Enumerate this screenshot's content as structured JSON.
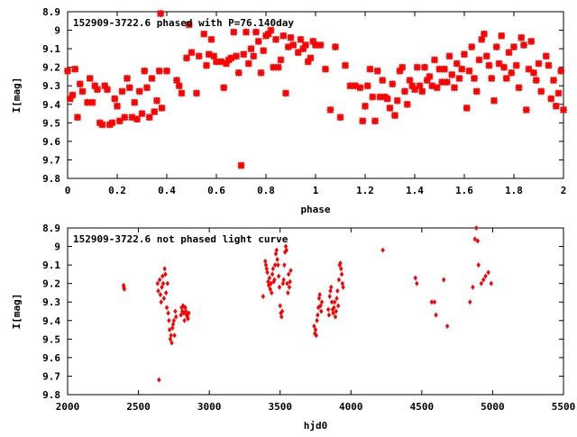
{
  "chart_data": [
    {
      "type": "scatter",
      "title": "152909-3722.6 phased with P=76.140day",
      "xlabel": "phase",
      "ylabel": "I[mag]",
      "xlim": [
        0,
        2
      ],
      "ylim": [
        9.8,
        8.9
      ],
      "y_inverted": true,
      "grid": false,
      "legend": "none",
      "marker": "filled-diamond-cross",
      "color": "#ff0000",
      "xticks": [
        "0",
        "0.2",
        "0.4",
        "0.6",
        "0.8",
        "1",
        "1.2",
        "1.4",
        "1.6",
        "1.8",
        "2"
      ],
      "yticks": [
        "8.9",
        "9",
        "9.1",
        "9.2",
        "9.3",
        "9.4",
        "9.5",
        "9.6",
        "9.7",
        "9.8"
      ],
      "points": [
        [
          0.0,
          9.22
        ],
        [
          0.01,
          9.37
        ],
        [
          0.02,
          9.35
        ],
        [
          0.03,
          9.21
        ],
        [
          0.04,
          9.47
        ],
        [
          0.05,
          9.29
        ],
        [
          0.06,
          9.33
        ],
        [
          0.08,
          9.39
        ],
        [
          0.09,
          9.26
        ],
        [
          0.1,
          9.39
        ],
        [
          0.11,
          9.3
        ],
        [
          0.12,
          9.32
        ],
        [
          0.13,
          9.5
        ],
        [
          0.14,
          9.51
        ],
        [
          0.15,
          9.3
        ],
        [
          0.16,
          9.32
        ],
        [
          0.17,
          9.51
        ],
        [
          0.18,
          9.5
        ],
        [
          0.19,
          9.37
        ],
        [
          0.2,
          9.41
        ],
        [
          0.21,
          9.49
        ],
        [
          0.22,
          9.33
        ],
        [
          0.23,
          9.47
        ],
        [
          0.24,
          9.26
        ],
        [
          0.25,
          9.31
        ],
        [
          0.26,
          9.47
        ],
        [
          0.27,
          9.39
        ],
        [
          0.28,
          9.48
        ],
        [
          0.29,
          9.33
        ],
        [
          0.3,
          9.45
        ],
        [
          0.31,
          9.22
        ],
        [
          0.32,
          9.31
        ],
        [
          0.33,
          9.47
        ],
        [
          0.34,
          9.26
        ],
        [
          0.35,
          9.44
        ],
        [
          0.36,
          9.38
        ],
        [
          0.37,
          9.22
        ],
        [
          0.375,
          8.91
        ],
        [
          0.38,
          9.42
        ],
        [
          0.4,
          9.22
        ],
        [
          0.44,
          9.27
        ],
        [
          0.45,
          9.3
        ],
        [
          0.46,
          9.34
        ],
        [
          0.48,
          9.15
        ],
        [
          0.49,
          8.97
        ],
        [
          0.5,
          9.12
        ],
        [
          0.52,
          9.34
        ],
        [
          0.53,
          9.14
        ],
        [
          0.55,
          9.02
        ],
        [
          0.56,
          9.19
        ],
        [
          0.57,
          9.13
        ],
        [
          0.58,
          9.05
        ],
        [
          0.59,
          9.14
        ],
        [
          0.6,
          9.17
        ],
        [
          0.62,
          9.17
        ],
        [
          0.63,
          9.31
        ],
        [
          0.64,
          9.18
        ],
        [
          0.65,
          9.16
        ],
        [
          0.66,
          9.15
        ],
        [
          0.67,
          9.01
        ],
        [
          0.68,
          9.14
        ],
        [
          0.69,
          9.23
        ],
        [
          0.7,
          9.73
        ],
        [
          0.71,
          9.13
        ],
        [
          0.72,
          9.01
        ],
        [
          0.73,
          9.18
        ],
        [
          0.74,
          9.1
        ],
        [
          0.75,
          9.14
        ],
        [
          0.76,
          9.01
        ],
        [
          0.77,
          9.06
        ],
        [
          0.78,
          9.23
        ],
        [
          0.79,
          9.11
        ],
        [
          0.8,
          9.03
        ],
        [
          0.81,
          9.02
        ],
        [
          0.82,
          9.0
        ],
        [
          0.83,
          9.2
        ],
        [
          0.84,
          9.05
        ],
        [
          0.85,
          9.2
        ],
        [
          0.86,
          9.16
        ],
        [
          0.87,
          9.03
        ],
        [
          0.88,
          9.34
        ],
        [
          0.89,
          9.09
        ],
        [
          0.9,
          9.04
        ],
        [
          0.91,
          9.08
        ],
        [
          0.93,
          9.12
        ],
        [
          0.94,
          9.05
        ],
        [
          0.95,
          9.1
        ],
        [
          0.96,
          9.08
        ],
        [
          0.97,
          9.17
        ],
        [
          0.98,
          9.15
        ],
        [
          0.99,
          9.06
        ],
        [
          1.0,
          9.08
        ],
        [
          1.02,
          9.08
        ],
        [
          1.04,
          9.21
        ],
        [
          1.06,
          9.43
        ],
        [
          1.08,
          9.09
        ],
        [
          1.1,
          9.47
        ],
        [
          1.12,
          9.19
        ],
        [
          1.14,
          9.3
        ],
        [
          1.16,
          9.3
        ],
        [
          1.18,
          9.31
        ],
        [
          1.19,
          9.49
        ],
        [
          1.2,
          9.41
        ],
        [
          1.21,
          9.3
        ],
        [
          1.22,
          9.21
        ],
        [
          1.23,
          9.36
        ],
        [
          1.24,
          9.49
        ],
        [
          1.25,
          9.22
        ],
        [
          1.26,
          9.36
        ],
        [
          1.27,
          9.27
        ],
        [
          1.28,
          9.36
        ],
        [
          1.29,
          9.37
        ],
        [
          1.3,
          9.42
        ],
        [
          1.31,
          9.29
        ],
        [
          1.32,
          9.46
        ],
        [
          1.33,
          9.38
        ],
        [
          1.34,
          9.22
        ],
        [
          1.35,
          9.2
        ],
        [
          1.36,
          9.33
        ],
        [
          1.37,
          9.4
        ],
        [
          1.38,
          9.27
        ],
        [
          1.39,
          9.3
        ],
        [
          1.4,
          9.32
        ],
        [
          1.41,
          9.2
        ],
        [
          1.42,
          9.3
        ],
        [
          1.43,
          9.33
        ],
        [
          1.44,
          9.2
        ],
        [
          1.45,
          9.27
        ],
        [
          1.46,
          9.25
        ],
        [
          1.47,
          9.3
        ],
        [
          1.48,
          9.16
        ],
        [
          1.49,
          9.31
        ],
        [
          1.5,
          9.21
        ],
        [
          1.51,
          9.28
        ],
        [
          1.52,
          9.21
        ],
        [
          1.53,
          9.28
        ],
        [
          1.54,
          9.14
        ],
        [
          1.55,
          9.24
        ],
        [
          1.56,
          9.31
        ],
        [
          1.57,
          9.18
        ],
        [
          1.58,
          9.26
        ],
        [
          1.59,
          9.21
        ],
        [
          1.6,
          9.13
        ],
        [
          1.61,
          9.42
        ],
        [
          1.62,
          9.22
        ],
        [
          1.63,
          9.09
        ],
        [
          1.64,
          9.26
        ],
        [
          1.65,
          9.33
        ],
        [
          1.66,
          9.16
        ],
        [
          1.67,
          9.05
        ],
        [
          1.68,
          9.02
        ],
        [
          1.69,
          9.14
        ],
        [
          1.7,
          9.19
        ],
        [
          1.71,
          9.26
        ],
        [
          1.72,
          9.38
        ],
        [
          1.73,
          9.09
        ],
        [
          1.74,
          9.18
        ],
        [
          1.75,
          9.03
        ],
        [
          1.76,
          9.2
        ],
        [
          1.77,
          9.26
        ],
        [
          1.78,
          9.12
        ],
        [
          1.79,
          9.23
        ],
        [
          1.8,
          9.09
        ],
        [
          1.81,
          9.19
        ],
        [
          1.82,
          9.31
        ],
        [
          1.83,
          9.04
        ],
        [
          1.84,
          9.08
        ],
        [
          1.85,
          9.43
        ],
        [
          1.86,
          9.21
        ],
        [
          1.87,
          9.06
        ],
        [
          1.88,
          9.23
        ],
        [
          1.89,
          9.27
        ],
        [
          1.9,
          9.18
        ],
        [
          1.91,
          9.33
        ],
        [
          1.93,
          9.14
        ],
        [
          1.94,
          9.19
        ],
        [
          1.95,
          9.37
        ],
        [
          1.96,
          9.27
        ],
        [
          1.97,
          9.41
        ],
        [
          1.98,
          9.34
        ],
        [
          1.99,
          9.22
        ],
        [
          2.0,
          9.43
        ]
      ]
    },
    {
      "type": "scatter",
      "title": "152909-3722.6 not phased light curve",
      "xlabel": "hjd0",
      "ylabel": "I[mag]",
      "xlim": [
        2000,
        5500
      ],
      "ylim": [
        9.8,
        8.9
      ],
      "y_inverted": true,
      "grid": false,
      "legend": "none",
      "marker": "small-diamond",
      "color": "#ff0000",
      "xticks": [
        "2000",
        "2500",
        "3000",
        "3500",
        "4000",
        "4500",
        "5000",
        "5500"
      ],
      "yticks": [
        "8.9",
        "9",
        "9.1",
        "9.2",
        "9.3",
        "9.4",
        "9.5",
        "9.6",
        "9.7",
        "9.8"
      ],
      "points": [
        [
          2395,
          9.21
        ],
        [
          2397,
          9.22
        ],
        [
          2400,
          9.23
        ],
        [
          2635,
          9.2
        ],
        [
          2640,
          9.24
        ],
        [
          2645,
          9.72
        ],
        [
          2650,
          9.18
        ],
        [
          2655,
          9.26
        ],
        [
          2660,
          9.3
        ],
        [
          2665,
          9.22
        ],
        [
          2670,
          9.16
        ],
        [
          2675,
          9.2
        ],
        [
          2680,
          9.28
        ],
        [
          2685,
          9.12
        ],
        [
          2690,
          9.15
        ],
        [
          2695,
          9.25
        ],
        [
          2700,
          9.33
        ],
        [
          2705,
          9.2
        ],
        [
          2710,
          9.36
        ],
        [
          2715,
          9.4
        ],
        [
          2720,
          9.45
        ],
        [
          2725,
          9.5
        ],
        [
          2730,
          9.48
        ],
        [
          2735,
          9.52
        ],
        [
          2740,
          9.44
        ],
        [
          2745,
          9.42
        ],
        [
          2750,
          9.4
        ],
        [
          2755,
          9.48
        ],
        [
          2760,
          9.35
        ],
        [
          2765,
          9.38
        ],
        [
          2800,
          9.37
        ],
        [
          2805,
          9.33
        ],
        [
          2810,
          9.35
        ],
        [
          2815,
          9.32
        ],
        [
          2820,
          9.36
        ],
        [
          2825,
          9.4
        ],
        [
          2830,
          9.33
        ],
        [
          2835,
          9.35
        ],
        [
          2840,
          9.37
        ],
        [
          2845,
          9.38
        ],
        [
          2850,
          9.39
        ],
        [
          2855,
          9.36
        ],
        [
          3380,
          9.27
        ],
        [
          3395,
          9.08
        ],
        [
          3400,
          9.1
        ],
        [
          3405,
          9.12
        ],
        [
          3410,
          9.14
        ],
        [
          3415,
          9.19
        ],
        [
          3420,
          9.21
        ],
        [
          3425,
          9.17
        ],
        [
          3430,
          9.23
        ],
        [
          3435,
          9.2
        ],
        [
          3440,
          9.25
        ],
        [
          3445,
          9.15
        ],
        [
          3450,
          9.12
        ],
        [
          3455,
          9.19
        ],
        [
          3460,
          9.18
        ],
        [
          3465,
          9.1
        ],
        [
          3470,
          9.04
        ],
        [
          3475,
          9.02
        ],
        [
          3480,
          9.07
        ],
        [
          3485,
          9.1
        ],
        [
          3490,
          9.16
        ],
        [
          3495,
          9.22
        ],
        [
          3500,
          9.32
        ],
        [
          3505,
          9.36
        ],
        [
          3510,
          9.38
        ],
        [
          3515,
          9.35
        ],
        [
          3520,
          9.2
        ],
        [
          3525,
          9.18
        ],
        [
          3530,
          9.1
        ],
        [
          3535,
          9.03
        ],
        [
          3540,
          9.0
        ],
        [
          3545,
          9.02
        ],
        [
          3550,
          9.2
        ],
        [
          3555,
          9.25
        ],
        [
          3560,
          9.15
        ],
        [
          3565,
          9.22
        ],
        [
          3570,
          9.19
        ],
        [
          3575,
          9.13
        ],
        [
          3740,
          9.43
        ],
        [
          3745,
          9.47
        ],
        [
          3750,
          9.45
        ],
        [
          3755,
          9.48
        ],
        [
          3760,
          9.4
        ],
        [
          3765,
          9.37
        ],
        [
          3770,
          9.33
        ],
        [
          3775,
          9.28
        ],
        [
          3780,
          9.26
        ],
        [
          3785,
          9.32
        ],
        [
          3790,
          9.35
        ],
        [
          3795,
          9.3
        ],
        [
          3840,
          9.34
        ],
        [
          3845,
          9.37
        ],
        [
          3850,
          9.27
        ],
        [
          3855,
          9.24
        ],
        [
          3860,
          9.22
        ],
        [
          3865,
          9.3
        ],
        [
          3870,
          9.34
        ],
        [
          3875,
          9.36
        ],
        [
          3880,
          9.33
        ],
        [
          3885,
          9.3
        ],
        [
          3890,
          9.38
        ],
        [
          3895,
          9.35
        ],
        [
          3900,
          9.28
        ],
        [
          3905,
          9.24
        ],
        [
          3910,
          9.32
        ],
        [
          3915,
          9.18
        ],
        [
          3920,
          9.1
        ],
        [
          3925,
          9.09
        ],
        [
          3930,
          9.12
        ],
        [
          3935,
          9.15
        ],
        [
          3940,
          9.2
        ],
        [
          3945,
          9.22
        ],
        [
          4225,
          9.02
        ],
        [
          4455,
          9.17
        ],
        [
          4465,
          9.2
        ],
        [
          4570,
          9.3
        ],
        [
          4590,
          9.3
        ],
        [
          4600,
          9.37
        ],
        [
          4655,
          9.18
        ],
        [
          4680,
          9.43
        ],
        [
          4840,
          9.3
        ],
        [
          4860,
          9.22
        ],
        [
          4875,
          8.96
        ],
        [
          4885,
          8.9
        ],
        [
          4895,
          8.97
        ],
        [
          4900,
          9.1
        ],
        [
          4920,
          9.2
        ],
        [
          4935,
          9.18
        ],
        [
          4950,
          9.16
        ],
        [
          4970,
          9.14
        ],
        [
          4990,
          9.2
        ]
      ]
    }
  ]
}
